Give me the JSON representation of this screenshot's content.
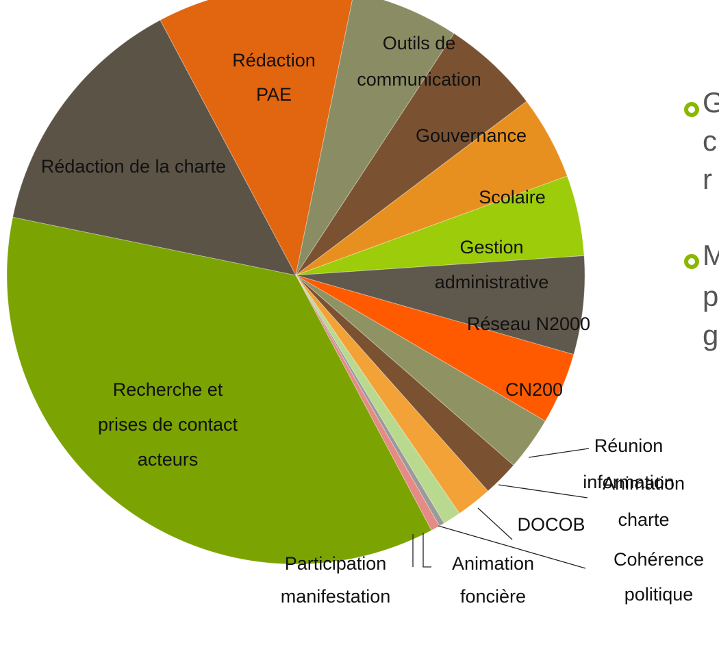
{
  "chart_data": {
    "type": "pie",
    "categories": [
      "Rédaction PAE",
      "Outils de communication",
      "Gouvernance",
      "Scolaire",
      "Gestion administrative",
      "Réseau N2000",
      "CN200",
      "Réunion information",
      "Animation charte",
      "DOCOB",
      "Cohérence politique",
      "Animation foncière",
      "Participation manifestation",
      "Recherche et prises de contact acteurs",
      "Rédaction de la charte"
    ],
    "values": [
      11,
      6,
      5.5,
      4.7,
      4.5,
      5.5,
      4,
      3,
      2,
      2,
      1,
      0.3,
      0.5,
      36,
      14
    ],
    "colors": [
      "#e2650f",
      "#8a8d63",
      "#7a5232",
      "#e8901f",
      "#9ccc0a",
      "#5f584c",
      "#ff5a00",
      "#8f9262",
      "#7a5232",
      "#f2a236",
      "#b9d98f",
      "#9a9a9a",
      "#e58a84",
      "#7ba302",
      "#5b5346"
    ]
  },
  "bullets": [
    [
      "G",
      "c",
      "r"
    ],
    [
      "M",
      "p",
      "g"
    ]
  ]
}
